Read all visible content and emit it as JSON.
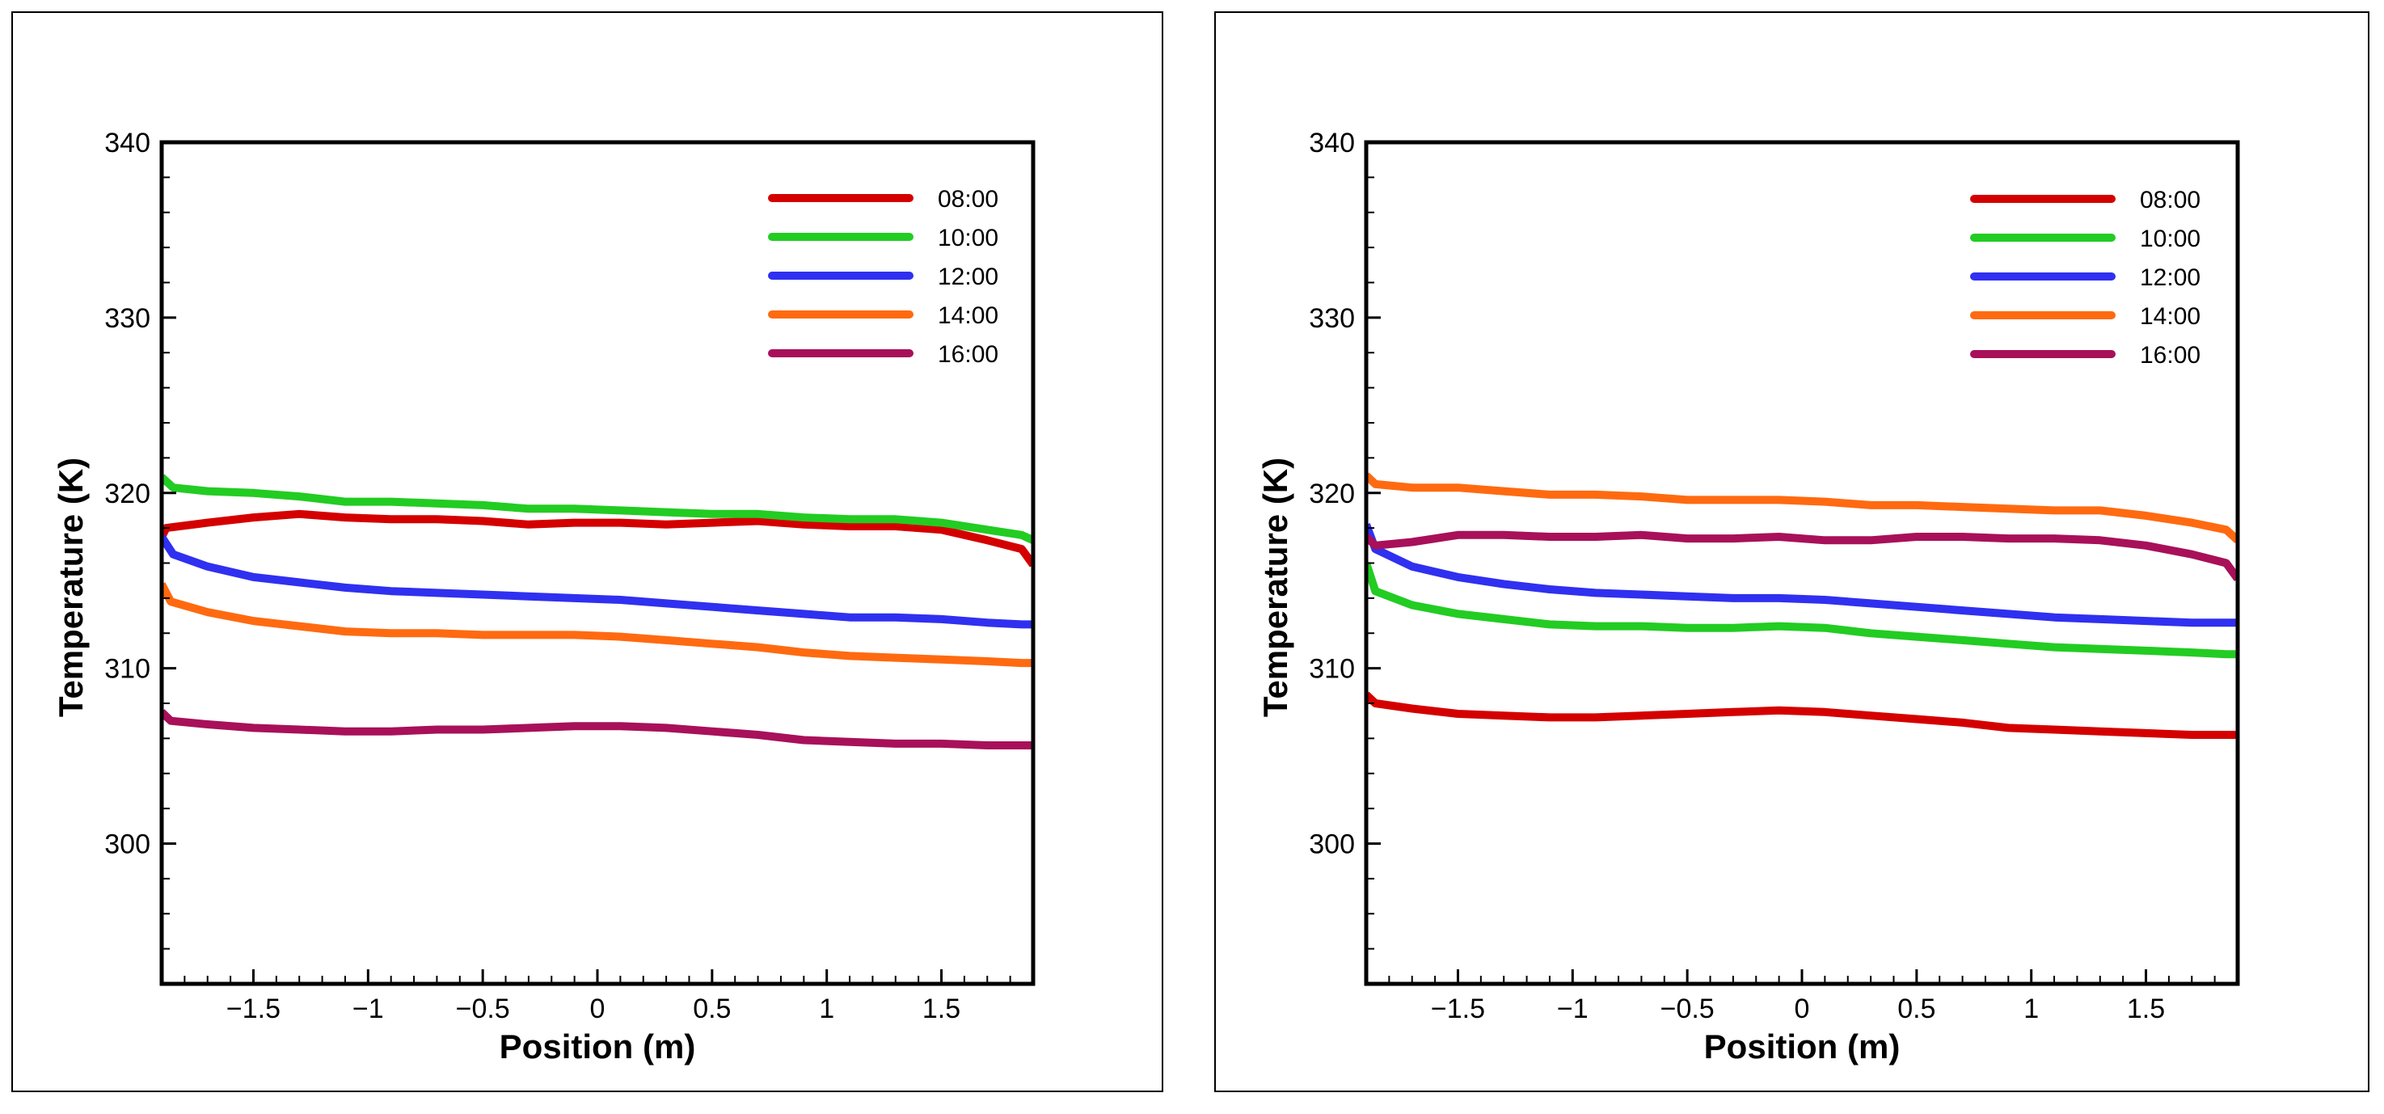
{
  "chart_data": [
    {
      "type": "line",
      "panel": "left",
      "title": "",
      "xlabel": "Position (m)",
      "ylabel": "Temperature (K)",
      "xlim": [
        -1.9,
        1.9
      ],
      "ylim": [
        292,
        340
      ],
      "x_major_ticks": [
        -1.5,
        -1,
        -0.5,
        0,
        0.5,
        1,
        1.5
      ],
      "x_tick_labels": [
        "−1.5",
        "−1",
        "−0.5",
        "0",
        "0.5",
        "1",
        "1.5"
      ],
      "y_major_ticks": [
        300,
        310,
        320,
        330,
        340
      ],
      "y_tick_labels": [
        "300",
        "310",
        "320",
        "330",
        "340"
      ],
      "grid": false,
      "legend_position": "top-right",
      "series": [
        {
          "name": "08:00",
          "color": "#d40000",
          "x": [
            -1.9,
            -1.88,
            -1.7,
            -1.5,
            -1.3,
            -1.1,
            -0.9,
            -0.7,
            -0.5,
            -0.3,
            -0.1,
            0.1,
            0.3,
            0.5,
            0.7,
            0.9,
            1.1,
            1.3,
            1.5,
            1.7,
            1.85,
            1.9
          ],
          "y": [
            317.5,
            318.0,
            318.3,
            318.6,
            318.8,
            318.6,
            318.5,
            318.5,
            318.4,
            318.2,
            318.3,
            318.3,
            318.2,
            318.3,
            318.4,
            318.2,
            318.1,
            318.1,
            317.9,
            317.3,
            316.8,
            315.9
          ]
        },
        {
          "name": "10:00",
          "color": "#22cc22",
          "x": [
            -1.9,
            -1.85,
            -1.7,
            -1.5,
            -1.3,
            -1.1,
            -0.9,
            -0.7,
            -0.5,
            -0.3,
            -0.1,
            0.1,
            0.3,
            0.5,
            0.7,
            0.9,
            1.1,
            1.3,
            1.5,
            1.7,
            1.85,
            1.9
          ],
          "y": [
            320.9,
            320.3,
            320.1,
            320.0,
            319.8,
            319.5,
            319.5,
            319.4,
            319.3,
            319.1,
            319.1,
            319.0,
            318.9,
            318.8,
            318.8,
            318.6,
            318.5,
            318.5,
            318.3,
            317.9,
            317.6,
            317.3
          ]
        },
        {
          "name": "12:00",
          "color": "#3030f0",
          "x": [
            -1.9,
            -1.85,
            -1.7,
            -1.5,
            -1.3,
            -1.1,
            -0.9,
            -0.7,
            -0.5,
            -0.3,
            -0.1,
            0.1,
            0.3,
            0.5,
            0.7,
            0.9,
            1.1,
            1.3,
            1.5,
            1.7,
            1.85,
            1.9
          ],
          "y": [
            317.5,
            316.5,
            315.8,
            315.2,
            314.9,
            314.6,
            314.4,
            314.3,
            314.2,
            314.1,
            314.0,
            313.9,
            313.7,
            313.5,
            313.3,
            313.1,
            312.9,
            312.9,
            312.8,
            312.6,
            312.5,
            312.5
          ]
        },
        {
          "name": "14:00",
          "color": "#ff6a10",
          "x": [
            -1.9,
            -1.86,
            -1.7,
            -1.5,
            -1.3,
            -1.1,
            -0.9,
            -0.7,
            -0.5,
            -0.3,
            -0.1,
            0.1,
            0.3,
            0.5,
            0.7,
            0.9,
            1.1,
            1.3,
            1.5,
            1.7,
            1.85,
            1.9
          ],
          "y": [
            314.8,
            313.8,
            313.2,
            312.7,
            312.4,
            312.1,
            312.0,
            312.0,
            311.9,
            311.9,
            311.9,
            311.8,
            311.6,
            311.4,
            311.2,
            310.9,
            310.7,
            310.6,
            310.5,
            310.4,
            310.3,
            310.3
          ]
        },
        {
          "name": "16:00",
          "color": "#a8105a",
          "x": [
            -1.9,
            -1.86,
            -1.7,
            -1.5,
            -1.3,
            -1.1,
            -0.9,
            -0.7,
            -0.5,
            -0.3,
            -0.1,
            0.1,
            0.3,
            0.5,
            0.7,
            0.9,
            1.1,
            1.3,
            1.5,
            1.7,
            1.85,
            1.9
          ],
          "y": [
            307.5,
            307.0,
            306.8,
            306.6,
            306.5,
            306.4,
            306.4,
            306.5,
            306.5,
            306.6,
            306.7,
            306.7,
            306.6,
            306.4,
            306.2,
            305.9,
            305.8,
            305.7,
            305.7,
            305.6,
            305.6,
            305.6
          ]
        }
      ]
    },
    {
      "type": "line",
      "panel": "right",
      "title": "",
      "xlabel": "Position (m)",
      "ylabel": "Temperature (K)",
      "xlim": [
        -1.9,
        1.9
      ],
      "ylim": [
        292,
        340
      ],
      "x_major_ticks": [
        -1.5,
        -1,
        -0.5,
        0,
        0.5,
        1,
        1.5
      ],
      "x_tick_labels": [
        "−1.5",
        "−1",
        "−0.5",
        "0",
        "0.5",
        "1",
        "1.5"
      ],
      "y_major_ticks": [
        300,
        310,
        320,
        330,
        340
      ],
      "y_tick_labels": [
        "300",
        "310",
        "320",
        "330",
        "340"
      ],
      "grid": false,
      "legend_position": "top-right",
      "series": [
        {
          "name": "08:00",
          "color": "#d40000",
          "x": [
            -1.9,
            -1.86,
            -1.7,
            -1.5,
            -1.3,
            -1.1,
            -0.9,
            -0.7,
            -0.5,
            -0.3,
            -0.1,
            0.1,
            0.3,
            0.5,
            0.7,
            0.9,
            1.1,
            1.3,
            1.5,
            1.7,
            1.85,
            1.9
          ],
          "y": [
            308.5,
            308.0,
            307.7,
            307.4,
            307.3,
            307.2,
            307.2,
            307.3,
            307.4,
            307.5,
            307.6,
            307.5,
            307.3,
            307.1,
            306.9,
            306.6,
            306.5,
            306.4,
            306.3,
            306.2,
            306.2,
            306.2
          ]
        },
        {
          "name": "10:00",
          "color": "#22cc22",
          "x": [
            -1.9,
            -1.86,
            -1.7,
            -1.5,
            -1.3,
            -1.1,
            -0.9,
            -0.7,
            -0.5,
            -0.3,
            -0.1,
            0.1,
            0.3,
            0.5,
            0.7,
            0.9,
            1.1,
            1.3,
            1.5,
            1.7,
            1.85,
            1.9
          ],
          "y": [
            316.0,
            314.4,
            313.6,
            313.1,
            312.8,
            312.5,
            312.4,
            312.4,
            312.3,
            312.3,
            312.4,
            312.3,
            312.0,
            311.8,
            311.6,
            311.4,
            311.2,
            311.1,
            311.0,
            310.9,
            310.8,
            310.8
          ]
        },
        {
          "name": "12:00",
          "color": "#3030f0",
          "x": [
            -1.9,
            -1.86,
            -1.7,
            -1.5,
            -1.3,
            -1.1,
            -0.9,
            -0.7,
            -0.5,
            -0.3,
            -0.1,
            0.1,
            0.3,
            0.5,
            0.7,
            0.9,
            1.1,
            1.3,
            1.5,
            1.7,
            1.85,
            1.9
          ],
          "y": [
            318.2,
            316.8,
            315.8,
            315.2,
            314.8,
            314.5,
            314.3,
            314.2,
            314.1,
            314.0,
            314.0,
            313.9,
            313.7,
            313.5,
            313.3,
            313.1,
            312.9,
            312.8,
            312.7,
            312.6,
            312.6,
            312.6
          ]
        },
        {
          "name": "14:00",
          "color": "#ff6a10",
          "x": [
            -1.9,
            -1.86,
            -1.7,
            -1.5,
            -1.3,
            -1.1,
            -0.9,
            -0.7,
            -0.5,
            -0.3,
            -0.1,
            0.1,
            0.3,
            0.5,
            0.7,
            0.9,
            1.1,
            1.3,
            1.5,
            1.7,
            1.85,
            1.9
          ],
          "y": [
            321.0,
            320.5,
            320.3,
            320.3,
            320.1,
            319.9,
            319.9,
            319.8,
            319.6,
            319.6,
            319.6,
            319.5,
            319.3,
            319.3,
            319.2,
            319.1,
            319.0,
            319.0,
            318.7,
            318.3,
            317.9,
            317.3
          ]
        },
        {
          "name": "16:00",
          "color": "#a8105a",
          "x": [
            -1.9,
            -1.86,
            -1.7,
            -1.5,
            -1.3,
            -1.1,
            -0.9,
            -0.7,
            -0.5,
            -0.3,
            -0.1,
            0.1,
            0.3,
            0.5,
            0.7,
            0.9,
            1.1,
            1.3,
            1.5,
            1.7,
            1.85,
            1.9
          ],
          "y": [
            317.5,
            317.0,
            317.2,
            317.6,
            317.6,
            317.5,
            317.5,
            317.6,
            317.4,
            317.4,
            317.5,
            317.3,
            317.3,
            317.5,
            317.5,
            317.4,
            317.4,
            317.3,
            317.0,
            316.5,
            316.0,
            315.1
          ]
        }
      ]
    }
  ]
}
